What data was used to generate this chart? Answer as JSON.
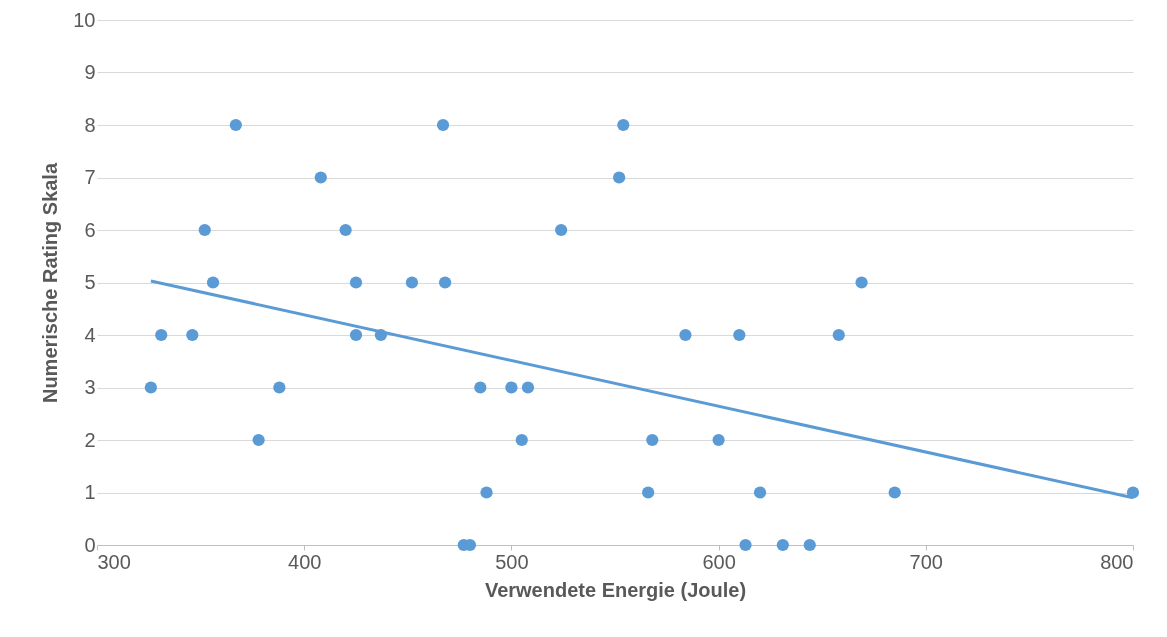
{
  "chart_data": {
    "type": "scatter",
    "xlabel": "Verwendete Energie (Joule)",
    "ylabel": "Numerische Rating Skala",
    "xlim": [
      300,
      800
    ],
    "xticks": [
      300,
      400,
      500,
      600,
      700,
      800
    ],
    "ylim": [
      0,
      10
    ],
    "yticks": [
      0,
      1,
      2,
      3,
      4,
      5,
      6,
      7,
      8,
      9,
      10
    ],
    "grid": "y",
    "series": [
      {
        "marker": "circle",
        "color": "#5b9bd5",
        "x": [
          326,
          331,
          346,
          352,
          356,
          367,
          378,
          388,
          408,
          420,
          425,
          425,
          437,
          452,
          467,
          468,
          477,
          480,
          485,
          488,
          500,
          505,
          508,
          524,
          552,
          554,
          566,
          568,
          584,
          600,
          610,
          613,
          620,
          631,
          644,
          658,
          669,
          685,
          800
        ],
        "values": [
          3,
          4,
          4,
          6,
          5,
          8,
          2,
          3,
          7,
          6,
          5,
          4,
          4,
          5,
          8,
          5,
          0,
          0,
          3,
          1,
          3,
          2,
          3,
          6,
          7,
          8,
          1,
          2,
          4,
          2,
          4,
          0,
          1,
          0,
          0,
          4,
          5,
          1,
          1
        ]
      },
      {
        "type": "line",
        "color": "#5b9bd5",
        "x": [
          326,
          800
        ],
        "values": [
          5.03,
          0.9
        ]
      }
    ]
  }
}
